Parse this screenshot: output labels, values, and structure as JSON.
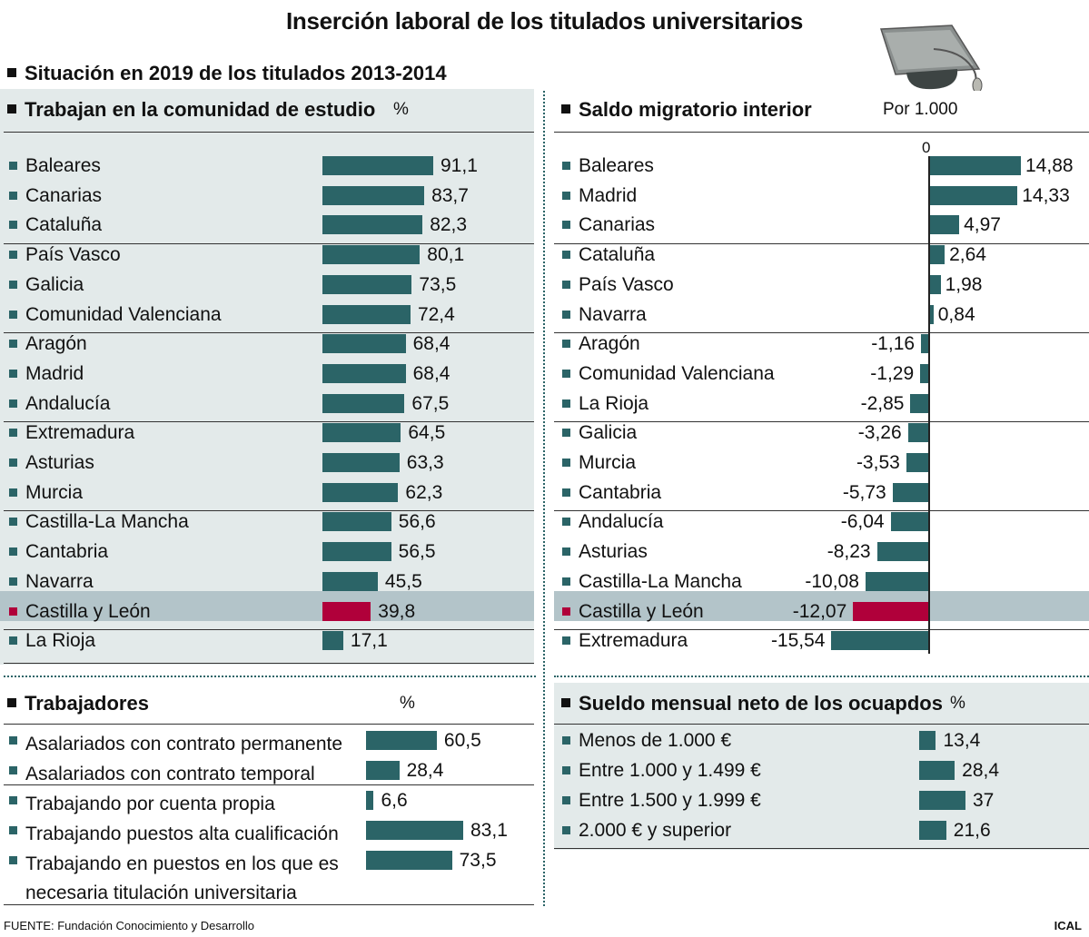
{
  "title": "Inserción laboral de los titulados universitarios",
  "subtitle": "Situación en 2019 de los titulados 2013-2014",
  "source": "FUENTE: Fundación Conocimiento y Desarrollo",
  "brand": "ICAL",
  "colors": {
    "bar": "#2b6467",
    "highlight": "#b0003a",
    "panel": "#e3eaea",
    "highlight_row": "#b3c4c9"
  },
  "chart_data": [
    {
      "type": "bar",
      "orientation": "horizontal",
      "title": "Trabajan en la comunidad de estudio",
      "unit": "%",
      "highlight": "Castilla y León",
      "categories": [
        "Baleares",
        "Canarias",
        "Cataluña",
        "País Vasco",
        "Galicia",
        "Comunidad Valenciana",
        "Aragón",
        "Madrid",
        "Andalucía",
        "Extremadura",
        "Asturias",
        "Murcia",
        "Castilla-La Mancha",
        "Cantabria",
        "Navarra",
        "Castilla y León",
        "La Rioja"
      ],
      "labels": [
        "91,1",
        "83,7",
        "82,3",
        "80,1",
        "73,5",
        "72,4",
        "68,4",
        "68,4",
        "67,5",
        "64,5",
        "63,3",
        "62,3",
        "56,6",
        "56,5",
        "45,5",
        "39,8",
        "17,1"
      ],
      "values": [
        91.1,
        83.7,
        82.3,
        80.1,
        73.5,
        72.4,
        68.4,
        68.4,
        67.5,
        64.5,
        63.3,
        62.3,
        56.6,
        56.5,
        45.5,
        39.8,
        17.1
      ]
    },
    {
      "type": "bar",
      "orientation": "horizontal",
      "title": "Saldo migratorio interior",
      "unit": "Por 1.000",
      "zero_label": "0",
      "highlight": "Castilla y León",
      "categories": [
        "Baleares",
        "Madrid",
        "Canarias",
        "Cataluña",
        "País Vasco",
        "Navarra",
        "Aragón",
        "Comunidad Valenciana",
        "La Rioja",
        "Galicia",
        "Murcia",
        "Cantabria",
        "Andalucía",
        "Asturias",
        "Castilla-La Mancha",
        "Castilla y León",
        "Extremadura"
      ],
      "labels": [
        "14,88",
        "14,33",
        "4,97",
        "2,64",
        "1,98",
        "0,84",
        "-1,16",
        "-1,29",
        "-2,85",
        "-3,26",
        "-3,53",
        "-5,73",
        "-6,04",
        "-8,23",
        "-10,08",
        "-12,07",
        "-15,54"
      ],
      "values": [
        14.88,
        14.33,
        4.97,
        2.64,
        1.98,
        0.84,
        -1.16,
        -1.29,
        -2.85,
        -3.26,
        -3.53,
        -5.73,
        -6.04,
        -8.23,
        -10.08,
        -12.07,
        -15.54
      ]
    },
    {
      "type": "bar",
      "orientation": "horizontal",
      "title": "Trabajadores",
      "unit": "%",
      "categories": [
        "Asalariados con contrato permanente",
        "Asalariados con contrato temporal",
        "Trabajando por cuenta propia",
        "Trabajando puestos alta cualificación",
        "Trabajando en puestos en los que es necesaria titulación universitaria"
      ],
      "labels": [
        "60,5",
        "28,4",
        "6,6",
        "83,1",
        "73,5"
      ],
      "values": [
        60.5,
        28.4,
        6.6,
        83.1,
        73.5
      ]
    },
    {
      "type": "bar",
      "orientation": "horizontal",
      "title": "Sueldo mensual neto de los ocuapdos",
      "unit": "%",
      "categories": [
        "Menos de 1.000 €",
        "Entre 1.000 y 1.499 €",
        "Entre 1.500 y 1.999 €",
        "2.000 € y superior"
      ],
      "labels": [
        "13,4",
        "28,4",
        "37",
        "21,6"
      ],
      "values": [
        13.4,
        28.4,
        37,
        21.6
      ]
    }
  ]
}
